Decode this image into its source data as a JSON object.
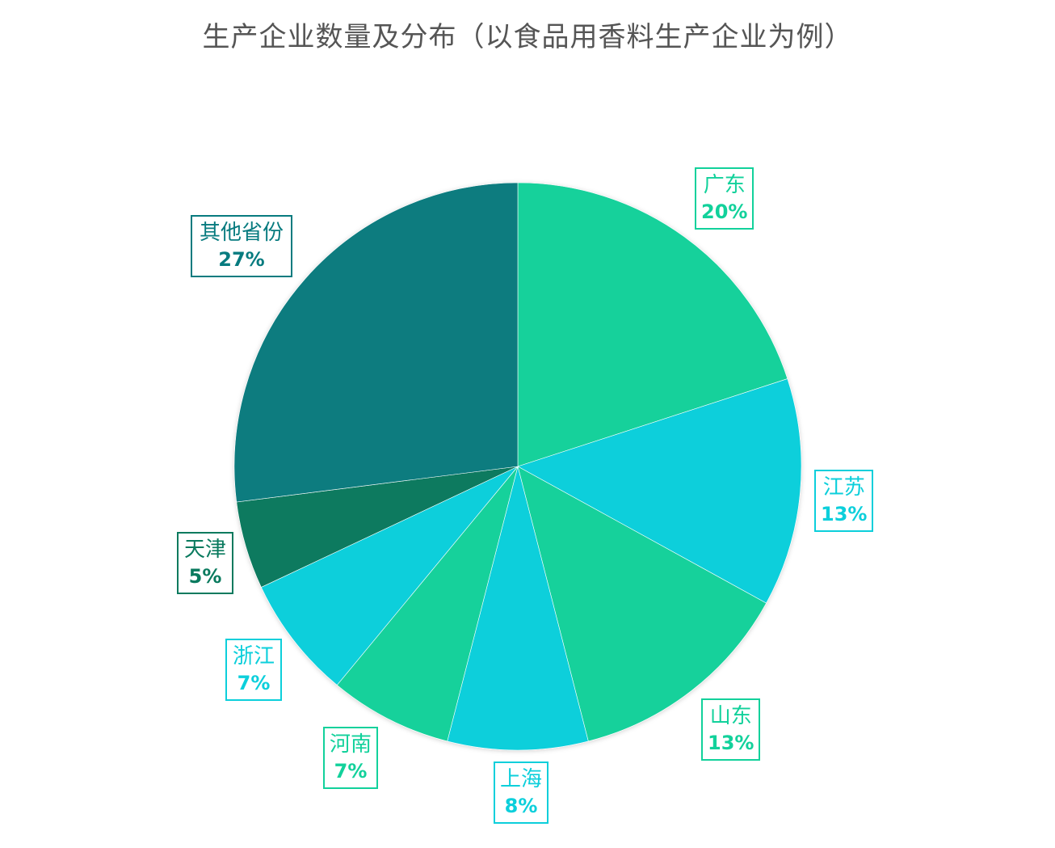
{
  "chart_data": {
    "type": "pie",
    "title": "生产企业数量及分布（以食品用香料生产企业为例）",
    "slices": [
      {
        "label": "广东",
        "value": 20,
        "pct_label": "20%",
        "color": "#12d19b"
      },
      {
        "label": "江苏",
        "value": 13,
        "pct_label": "13%",
        "color": "#0ccfdb"
      },
      {
        "label": "山东",
        "value": 13,
        "pct_label": "13%",
        "color": "#12d19b"
      },
      {
        "label": "上海",
        "value": 8,
        "pct_label": "8%",
        "color": "#0ccfdb"
      },
      {
        "label": "河南",
        "value": 7,
        "pct_label": "7%",
        "color": "#12d19b"
      },
      {
        "label": "浙江",
        "value": 7,
        "pct_label": "7%",
        "color": "#0ccfdb"
      },
      {
        "label": "天津",
        "value": 5,
        "pct_label": "5%",
        "color": "#097a5e"
      },
      {
        "label": "其他省份",
        "value": 27,
        "pct_label": "27%",
        "color": "#077b7f"
      }
    ],
    "legend": "none",
    "start_angle": "12 o'clock",
    "direction": "clockwise"
  }
}
